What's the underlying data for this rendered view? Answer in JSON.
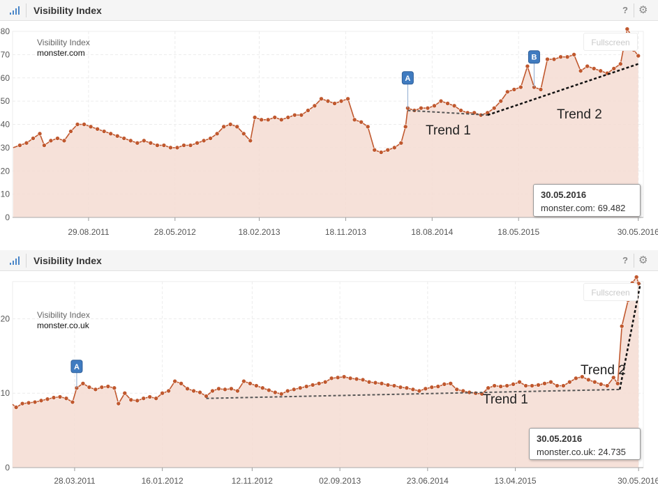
{
  "header_title": "Visibility Index",
  "help_glyph": "?",
  "fullscreen_label": "Fullscreen",
  "colors": {
    "line": "#c0582e",
    "fill": "#f4dcd2",
    "grid": "#e4e4e4",
    "marker": "#3f7bc0"
  },
  "chart_data": [
    {
      "type": "area",
      "legend_title": "Visibility Index",
      "legend_domain": "monster.com",
      "yticks": [
        0,
        10,
        20,
        30,
        40,
        50,
        60,
        70,
        80
      ],
      "ylim": [
        0,
        80
      ],
      "xlim": [
        "2011-01-01",
        "2016-06-15"
      ],
      "xticks": [
        {
          "date": "2011-08-29",
          "label": "29.08.2011"
        },
        {
          "date": "2012-05-28",
          "label": "28.05.2012"
        },
        {
          "date": "2013-02-18",
          "label": "18.02.2013"
        },
        {
          "date": "2013-11-18",
          "label": "18.11.2013"
        },
        {
          "date": "2014-08-18",
          "label": "18.08.2014"
        },
        {
          "date": "2015-05-18",
          "label": "18.05.2015"
        },
        {
          "date": "2016-05-30",
          "label": "30.05.2016"
        }
      ],
      "series": [
        {
          "name": "monster.com",
          "points": [
            [
              "2011-01-03",
              30
            ],
            [
              "2011-01-24",
              31
            ],
            [
              "2011-02-14",
              32
            ],
            [
              "2011-03-07",
              34
            ],
            [
              "2011-03-28",
              36
            ],
            [
              "2011-04-11",
              31
            ],
            [
              "2011-05-02",
              33
            ],
            [
              "2011-05-23",
              34
            ],
            [
              "2011-06-13",
              33
            ],
            [
              "2011-07-04",
              37
            ],
            [
              "2011-07-25",
              40
            ],
            [
              "2011-08-15",
              40
            ],
            [
              "2011-09-05",
              39
            ],
            [
              "2011-09-26",
              38
            ],
            [
              "2011-10-17",
              37
            ],
            [
              "2011-11-07",
              36
            ],
            [
              "2011-11-28",
              35
            ],
            [
              "2011-12-19",
              34
            ],
            [
              "2012-01-09",
              33
            ],
            [
              "2012-01-30",
              32
            ],
            [
              "2012-02-20",
              33
            ],
            [
              "2012-03-12",
              32
            ],
            [
              "2012-04-02",
              31
            ],
            [
              "2012-04-23",
              31
            ],
            [
              "2012-05-14",
              30
            ],
            [
              "2012-06-04",
              30
            ],
            [
              "2012-06-25",
              31
            ],
            [
              "2012-07-16",
              31
            ],
            [
              "2012-08-06",
              32
            ],
            [
              "2012-08-27",
              33
            ],
            [
              "2012-09-17",
              34
            ],
            [
              "2012-10-08",
              36
            ],
            [
              "2012-10-29",
              39
            ],
            [
              "2012-11-19",
              40
            ],
            [
              "2012-12-10",
              39
            ],
            [
              "2012-12-31",
              36
            ],
            [
              "2013-01-21",
              33
            ],
            [
              "2013-02-04",
              43
            ],
            [
              "2013-02-25",
              42
            ],
            [
              "2013-03-18",
              42
            ],
            [
              "2013-04-08",
              43
            ],
            [
              "2013-04-29",
              42
            ],
            [
              "2013-05-20",
              43
            ],
            [
              "2013-06-10",
              44
            ],
            [
              "2013-07-01",
              44
            ],
            [
              "2013-07-22",
              46
            ],
            [
              "2013-08-12",
              48
            ],
            [
              "2013-09-02",
              51
            ],
            [
              "2013-09-23",
              50
            ],
            [
              "2013-10-14",
              49
            ],
            [
              "2013-11-04",
              50
            ],
            [
              "2013-11-25",
              51
            ],
            [
              "2013-12-16",
              42
            ],
            [
              "2014-01-06",
              41
            ],
            [
              "2014-01-27",
              39
            ],
            [
              "2014-02-17",
              29
            ],
            [
              "2014-03-10",
              28
            ],
            [
              "2014-03-31",
              29
            ],
            [
              "2014-04-21",
              30
            ],
            [
              "2014-05-12",
              32
            ],
            [
              "2014-05-26",
              39
            ],
            [
              "2014-06-02",
              47
            ],
            [
              "2014-06-23",
              46
            ],
            [
              "2014-07-14",
              47
            ],
            [
              "2014-08-04",
              47
            ],
            [
              "2014-08-25",
              48
            ],
            [
              "2014-09-15",
              50
            ],
            [
              "2014-10-06",
              49
            ],
            [
              "2014-10-27",
              48
            ],
            [
              "2014-11-17",
              46
            ],
            [
              "2014-12-08",
              45
            ],
            [
              "2014-12-29",
              45
            ],
            [
              "2015-01-19",
              44
            ],
            [
              "2015-02-09",
              45
            ],
            [
              "2015-03-02",
              47
            ],
            [
              "2015-03-23",
              50
            ],
            [
              "2015-04-13",
              54
            ],
            [
              "2015-05-04",
              55
            ],
            [
              "2015-05-25",
              56
            ],
            [
              "2015-06-15",
              65
            ],
            [
              "2015-07-06",
              56
            ],
            [
              "2015-07-27",
              55
            ],
            [
              "2015-08-17",
              68
            ],
            [
              "2015-09-07",
              68
            ],
            [
              "2015-09-28",
              69
            ],
            [
              "2015-10-19",
              69
            ],
            [
              "2015-11-09",
              70
            ],
            [
              "2015-11-30",
              63
            ],
            [
              "2015-12-21",
              65
            ],
            [
              "2016-01-11",
              64
            ],
            [
              "2016-02-01",
              63
            ],
            [
              "2016-02-22",
              62
            ],
            [
              "2016-03-14",
              64
            ],
            [
              "2016-04-04",
              66
            ],
            [
              "2016-04-25",
              81
            ],
            [
              "2016-05-09",
              78
            ],
            [
              "2016-05-16",
              72
            ],
            [
              "2016-05-30",
              69.482
            ]
          ]
        }
      ],
      "trends": [
        {
          "label": "Trend 1",
          "from": [
            "2014-06-02",
            46
          ],
          "to": [
            "2015-02-09",
            44
          ]
        },
        {
          "label": "Trend 2",
          "from": [
            "2015-02-09",
            44
          ],
          "to": [
            "2016-05-30",
            66
          ]
        }
      ],
      "markers": [
        {
          "letter": "A",
          "date": "2014-06-02",
          "value": 60
        },
        {
          "letter": "B",
          "date": "2015-07-06",
          "value": 69
        }
      ],
      "tooltip": {
        "date": "30.05.2016",
        "text": "monster.com: 69.482"
      }
    },
    {
      "type": "area",
      "legend_title": "Visibility Index",
      "legend_domain": "monster.co.uk",
      "yticks": [
        0,
        10,
        20
      ],
      "ylim": [
        0,
        25
      ],
      "xlim": [
        "2010-09-01",
        "2016-06-15"
      ],
      "xticks": [
        {
          "date": "2011-03-28",
          "label": "28.03.2011"
        },
        {
          "date": "2012-01-16",
          "label": "16.01.2012"
        },
        {
          "date": "2012-11-12",
          "label": "12.11.2012"
        },
        {
          "date": "2013-09-02",
          "label": "02.09.2013"
        },
        {
          "date": "2014-06-23",
          "label": "23.06.2014"
        },
        {
          "date": "2015-04-13",
          "label": "13.04.2015"
        },
        {
          "date": "2016-05-30",
          "label": "30.05.2016"
        }
      ],
      "series": [
        {
          "name": "monster.co.uk",
          "points": [
            [
              "2010-09-01",
              8.5
            ],
            [
              "2010-09-13",
              8.1
            ],
            [
              "2010-10-04",
              8.6
            ],
            [
              "2010-10-25",
              8.7
            ],
            [
              "2010-11-15",
              8.8
            ],
            [
              "2010-12-06",
              9.0
            ],
            [
              "2010-12-27",
              9.2
            ],
            [
              "2011-01-17",
              9.4
            ],
            [
              "2011-02-07",
              9.5
            ],
            [
              "2011-02-28",
              9.3
            ],
            [
              "2011-03-21",
              8.8
            ],
            [
              "2011-04-04",
              10.7
            ],
            [
              "2011-04-25",
              11.3
            ],
            [
              "2011-05-16",
              10.8
            ],
            [
              "2011-06-06",
              10.5
            ],
            [
              "2011-06-27",
              10.8
            ],
            [
              "2011-07-18",
              10.9
            ],
            [
              "2011-08-08",
              10.7
            ],
            [
              "2011-08-22",
              8.6
            ],
            [
              "2011-09-12",
              10.0
            ],
            [
              "2011-10-03",
              9.1
            ],
            [
              "2011-10-24",
              9.0
            ],
            [
              "2011-11-14",
              9.3
            ],
            [
              "2011-12-05",
              9.5
            ],
            [
              "2011-12-26",
              9.3
            ],
            [
              "2012-01-16",
              10.0
            ],
            [
              "2012-02-06",
              10.3
            ],
            [
              "2012-02-27",
              11.6
            ],
            [
              "2012-03-19",
              11.3
            ],
            [
              "2012-04-09",
              10.6
            ],
            [
              "2012-04-30",
              10.3
            ],
            [
              "2012-05-21",
              10.1
            ],
            [
              "2012-06-11",
              9.6
            ],
            [
              "2012-07-02",
              10.3
            ],
            [
              "2012-07-23",
              10.6
            ],
            [
              "2012-08-13",
              10.5
            ],
            [
              "2012-09-03",
              10.6
            ],
            [
              "2012-09-24",
              10.3
            ],
            [
              "2012-10-15",
              11.6
            ],
            [
              "2012-11-05",
              11.3
            ],
            [
              "2012-11-26",
              11.0
            ],
            [
              "2012-12-17",
              10.7
            ],
            [
              "2013-01-07",
              10.4
            ],
            [
              "2013-01-28",
              10.1
            ],
            [
              "2013-02-18",
              9.9
            ],
            [
              "2013-03-11",
              10.3
            ],
            [
              "2013-04-01",
              10.5
            ],
            [
              "2013-04-22",
              10.7
            ],
            [
              "2013-05-13",
              10.9
            ],
            [
              "2013-06-03",
              11.1
            ],
            [
              "2013-06-24",
              11.3
            ],
            [
              "2013-07-15",
              11.5
            ],
            [
              "2013-08-05",
              12.0
            ],
            [
              "2013-08-26",
              12.1
            ],
            [
              "2013-09-16",
              12.2
            ],
            [
              "2013-10-07",
              12.0
            ],
            [
              "2013-10-28",
              11.9
            ],
            [
              "2013-11-18",
              11.8
            ],
            [
              "2013-12-09",
              11.5
            ],
            [
              "2013-12-30",
              11.4
            ],
            [
              "2014-01-20",
              11.3
            ],
            [
              "2014-02-10",
              11.1
            ],
            [
              "2014-03-03",
              11.0
            ],
            [
              "2014-03-24",
              10.8
            ],
            [
              "2014-04-14",
              10.7
            ],
            [
              "2014-05-05",
              10.5
            ],
            [
              "2014-05-26",
              10.3
            ],
            [
              "2014-06-16",
              10.6
            ],
            [
              "2014-07-07",
              10.8
            ],
            [
              "2014-07-28",
              10.9
            ],
            [
              "2014-08-18",
              11.2
            ],
            [
              "2014-09-08",
              11.3
            ],
            [
              "2014-09-29",
              10.5
            ],
            [
              "2014-10-20",
              10.3
            ],
            [
              "2014-11-10",
              10.1
            ],
            [
              "2014-12-01",
              10.0
            ],
            [
              "2014-12-22",
              9.9
            ],
            [
              "2015-01-12",
              10.7
            ],
            [
              "2015-02-02",
              11.0
            ],
            [
              "2015-02-23",
              10.9
            ],
            [
              "2015-03-16",
              11.0
            ],
            [
              "2015-04-06",
              11.2
            ],
            [
              "2015-04-27",
              11.5
            ],
            [
              "2015-05-18",
              11.0
            ],
            [
              "2015-06-08",
              11.0
            ],
            [
              "2015-06-29",
              11.1
            ],
            [
              "2015-07-20",
              11.3
            ],
            [
              "2015-08-10",
              11.5
            ],
            [
              "2015-08-31",
              11.0
            ],
            [
              "2015-09-21",
              11.0
            ],
            [
              "2015-10-12",
              11.5
            ],
            [
              "2015-11-02",
              12.0
            ],
            [
              "2015-11-23",
              12.2
            ],
            [
              "2015-12-14",
              11.8
            ],
            [
              "2016-01-04",
              11.5
            ],
            [
              "2016-01-25",
              11.2
            ],
            [
              "2016-02-15",
              11.0
            ],
            [
              "2016-03-07",
              12.1
            ],
            [
              "2016-03-21",
              11.3
            ],
            [
              "2016-04-04",
              19.0
            ],
            [
              "2016-04-25",
              22.5
            ],
            [
              "2016-05-09",
              24.8
            ],
            [
              "2016-05-23",
              25.6
            ],
            [
              "2016-05-30",
              24.735
            ]
          ]
        }
      ],
      "trends": [
        {
          "label": "Trend 1",
          "from": [
            "2012-06-11",
            9.3
          ],
          "to": [
            "2016-03-28",
            10.5
          ]
        },
        {
          "label": "Trend 2",
          "from": [
            "2016-03-28",
            10.5
          ],
          "to": [
            "2016-06-05",
            24.7
          ]
        }
      ],
      "markers": [
        {
          "letter": "A",
          "date": "2011-04-04",
          "value": 13.6
        }
      ],
      "tooltip": {
        "date": "30.05.2016",
        "text": "monster.co.uk: 24.735"
      }
    }
  ]
}
